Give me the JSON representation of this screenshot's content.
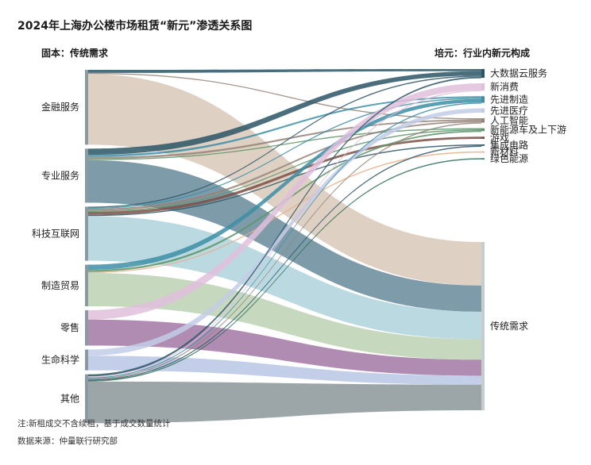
{
  "title": "2024年上海办公楼市场租赁“新元”渗透关系图",
  "left_header": "固本：传统需求",
  "right_header": "培元：行业内新元构成",
  "note": "注:新租成交不含续租，基于成交数量统计",
  "source": "数据来源：仲量联行研究部",
  "diagram": {
    "type": "sankey",
    "left_nodes": [
      {
        "name": "金融服务",
        "color": "#d6c3b4",
        "value": 72
      },
      {
        "name": "专业服务",
        "color": "#5a7f91",
        "value": 52
      },
      {
        "name": "科技互联网",
        "color": "#a8ced8",
        "value": 52
      },
      {
        "name": "制造贸易",
        "color": "#b6cdab",
        "value": 40
      },
      {
        "name": "零售",
        "color": "#9a6c9d",
        "value": 34
      },
      {
        "name": "生命科学",
        "color": "#b2c2e3",
        "value": 20
      },
      {
        "name": "其他",
        "color": "#808d91",
        "value": 47
      }
    ],
    "right_nodes": [
      {
        "name": "大数据云服务",
        "color": "#2b5566"
      },
      {
        "name": "新消费",
        "color": "#e1bfdc"
      },
      {
        "name": "先进制造",
        "color": "#3d8ea6"
      },
      {
        "name": "先进医疗",
        "color": "#c2cde8"
      },
      {
        "name": "人工智能",
        "color": "#958479"
      },
      {
        "name": "新能源车及上下游",
        "color": "#5d9468"
      },
      {
        "name": "游戏",
        "color": "#7b5045"
      },
      {
        "name": "集成电路",
        "color": "#2b5566"
      },
      {
        "name": "新材料",
        "color": "#e9ad85"
      },
      {
        "name": "绿色能源",
        "color": "#2e6e58"
      },
      {
        "name": "传统需求",
        "color": "#c5cdd1"
      }
    ],
    "flows": [
      {
        "source": "金融服务",
        "target": "大数据云服务",
        "value": 3
      },
      {
        "source": "金融服务",
        "target": "人工智能",
        "value": 1
      },
      {
        "source": "金融服务",
        "target": "传统需求",
        "value": 68
      },
      {
        "source": "专业服务",
        "target": "大数据云服务",
        "value": 6
      },
      {
        "source": "专业服务",
        "target": "先进制造",
        "value": 2
      },
      {
        "source": "专业服务",
        "target": "人工智能",
        "value": 2
      },
      {
        "source": "专业服务",
        "target": "新能源车及上下游",
        "value": 1
      },
      {
        "source": "专业服务",
        "target": "传统需求",
        "value": 41
      },
      {
        "source": "科技互联网",
        "target": "大数据云服务",
        "value": 1
      },
      {
        "source": "科技互联网",
        "target": "先进制造",
        "value": 1
      },
      {
        "source": "科技互联网",
        "target": "人工智能",
        "value": 2
      },
      {
        "source": "科技互联网",
        "target": "新能源车及上下游",
        "value": 1
      },
      {
        "source": "科技互联网",
        "target": "游戏",
        "value": 3
      },
      {
        "source": "科技互联网",
        "target": "集成电路",
        "value": 1
      },
      {
        "source": "科技互联网",
        "target": "传统需求",
        "value": 43
      },
      {
        "source": "制造贸易",
        "target": "先进制造",
        "value": 5
      },
      {
        "source": "制造贸易",
        "target": "新能源车及上下游",
        "value": 2
      },
      {
        "source": "制造贸易",
        "target": "新材料",
        "value": 1
      },
      {
        "source": "制造贸易",
        "target": "传统需求",
        "value": 32
      },
      {
        "source": "零售",
        "target": "新消费",
        "value": 9
      },
      {
        "source": "零售",
        "target": "传统需求",
        "value": 25
      },
      {
        "source": "生命科学",
        "target": "先进医疗",
        "value": 6
      },
      {
        "source": "生命科学",
        "target": "传统需求",
        "value": 14
      },
      {
        "source": "其他",
        "target": "大数据云服务",
        "value": 2
      },
      {
        "source": "其他",
        "target": "新消费",
        "value": 1
      },
      {
        "source": "其他",
        "target": "先进制造",
        "value": 1
      },
      {
        "source": "其他",
        "target": "人工智能",
        "value": 1
      },
      {
        "source": "其他",
        "target": "集成电路",
        "value": 1
      },
      {
        "source": "其他",
        "target": "绿色能源",
        "value": 1
      },
      {
        "source": "其他",
        "target": "传统需求",
        "value": 40
      }
    ]
  }
}
